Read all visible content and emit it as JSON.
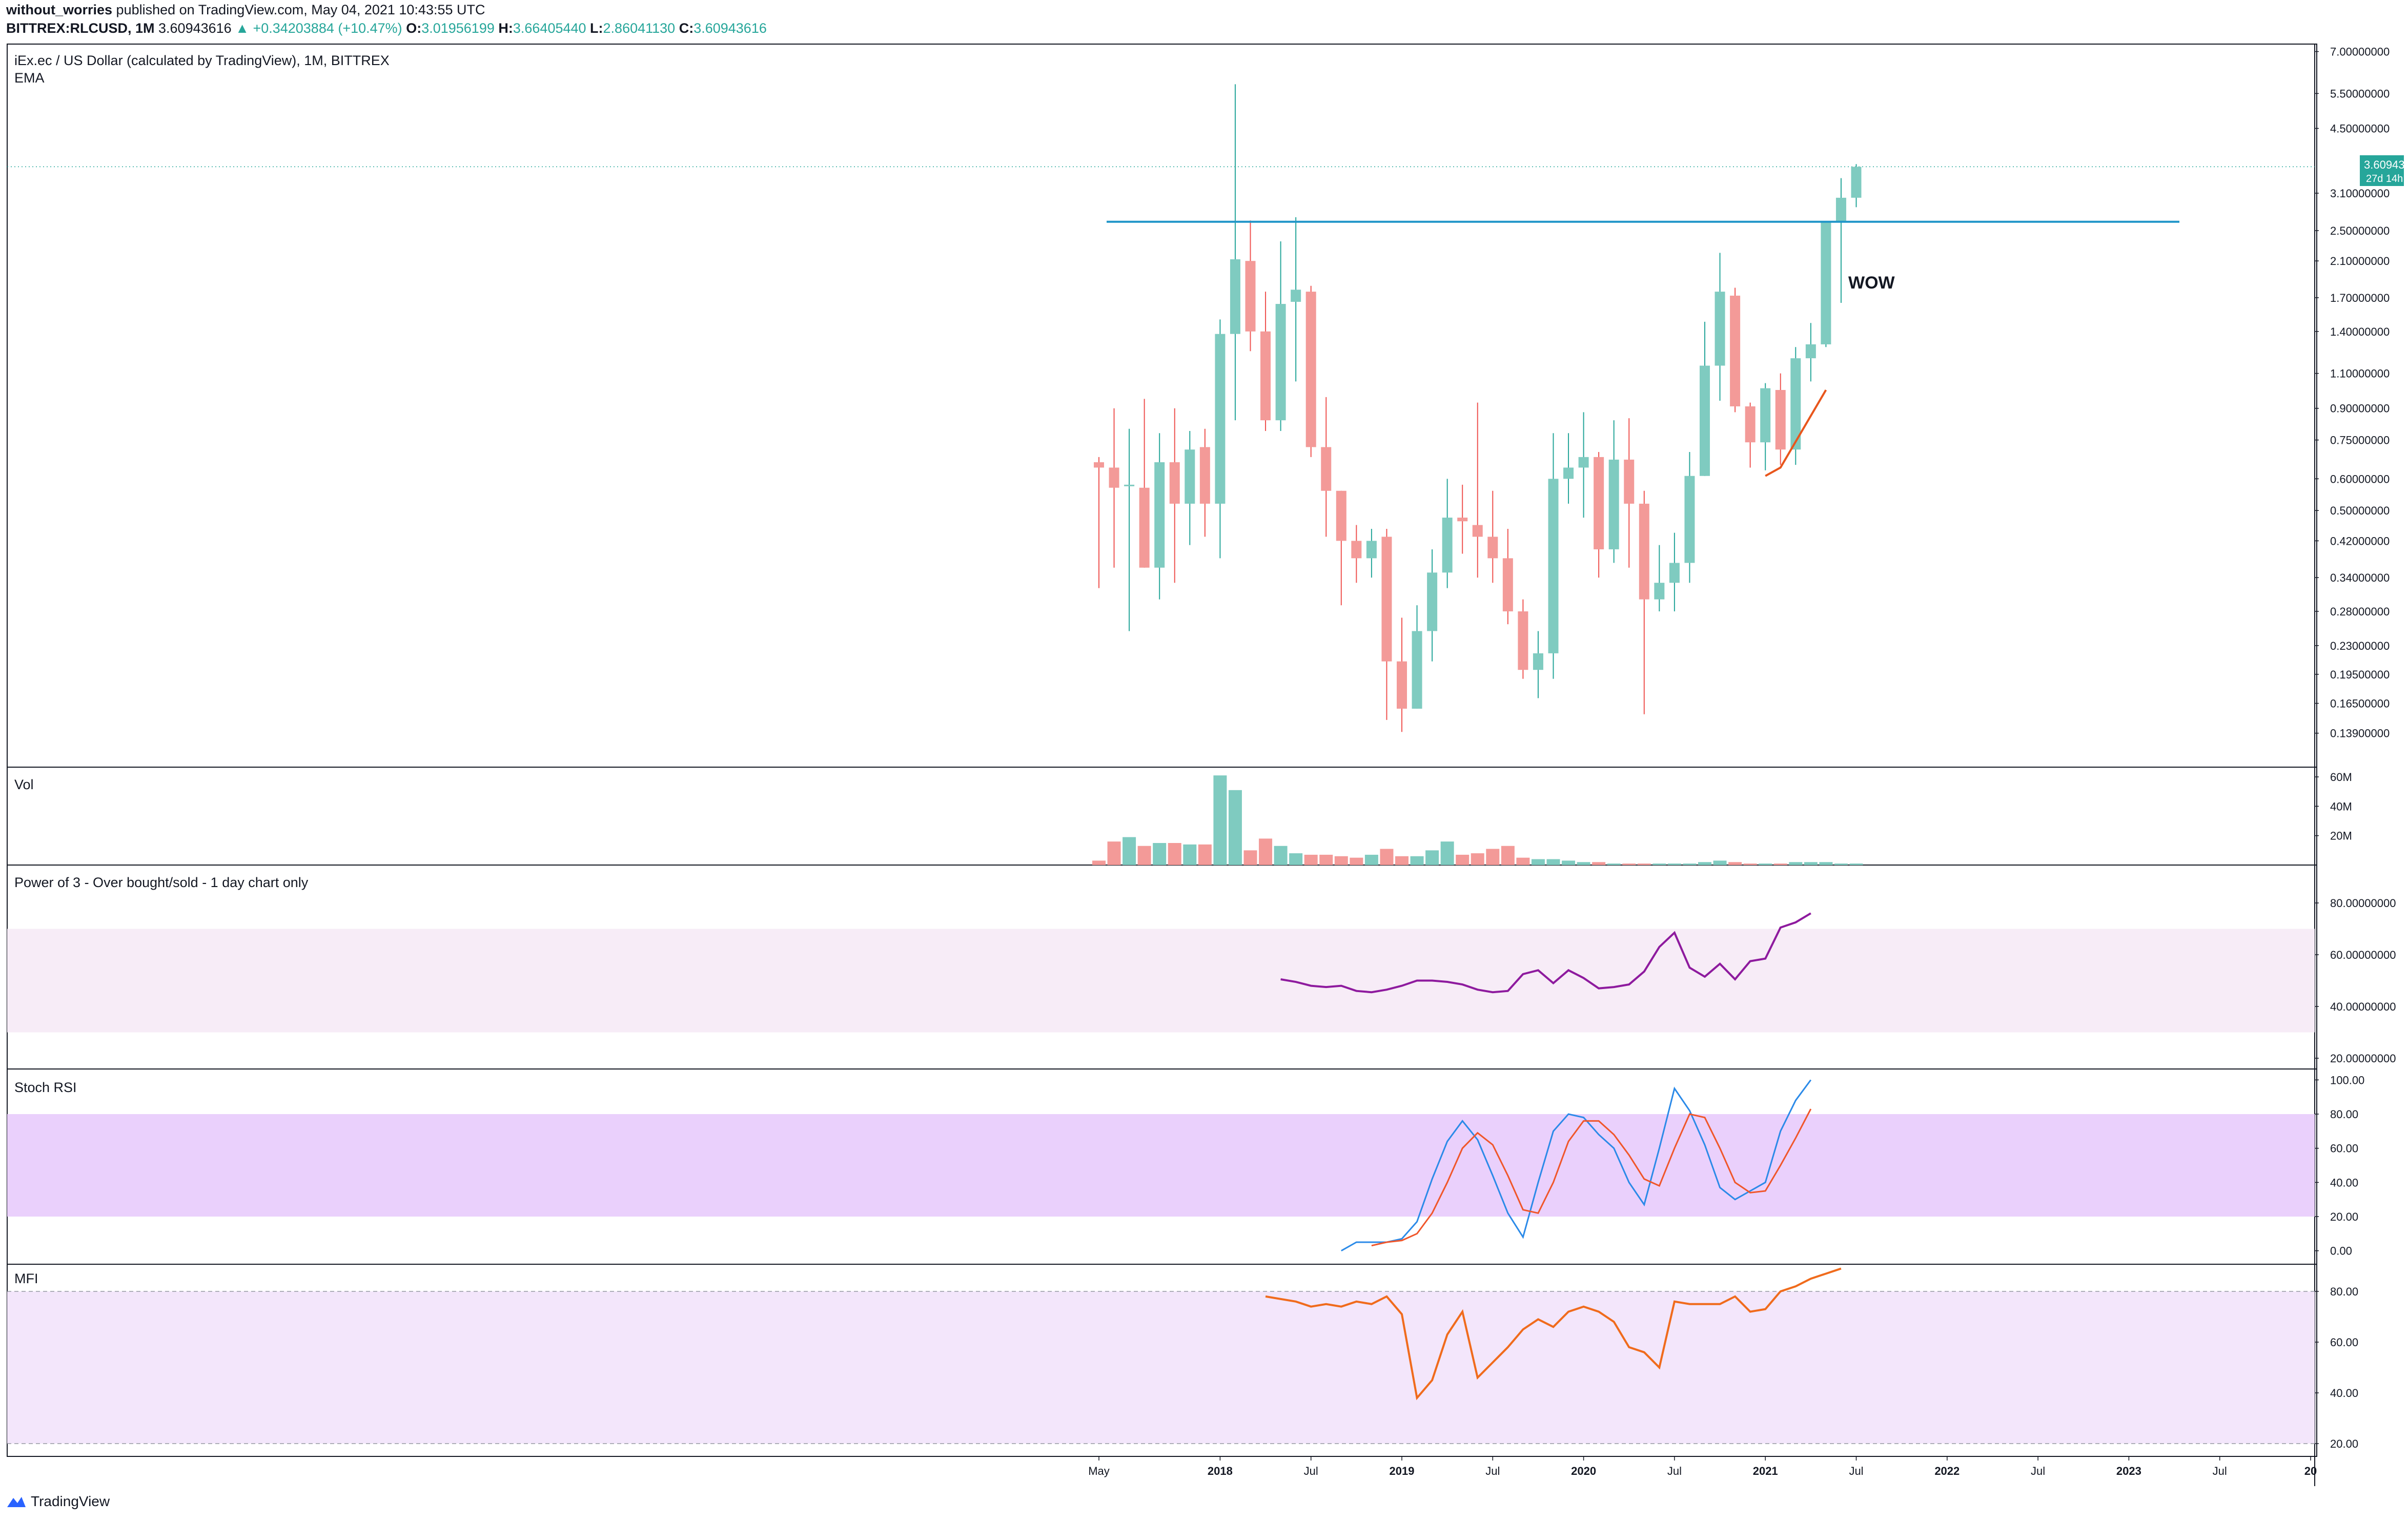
{
  "header": {
    "author": "without_worries",
    "published_text": "published on TradingView.com, May 04, 2021 10:43:55 UTC",
    "symbol": "BITTREX:RLCUSD, 1M",
    "last": "3.60943616",
    "change_arrow": "▲",
    "change": "+0.34203884 (+10.47%)",
    "o_label": "O:",
    "o_value": "3.01956199",
    "h_label": "H:",
    "h_value": "3.66405440",
    "l_label": "L:",
    "l_value": "2.86041130",
    "c_label": "C:",
    "c_value": "3.60943616"
  },
  "panes": {
    "main_title": "iEx.ec / US Dollar (calculated by TradingView), 1M, BITTREX",
    "main_subtitle": "EMA",
    "annotation": "WOW",
    "price_badge": "3.60943616",
    "price_badge_sub": "27d 14h",
    "vol_title": "Vol",
    "power_title": "Power of 3 - Over bought/sold - 1 day chart only",
    "stoch_title": "Stoch RSI",
    "mfi_title": "MFI"
  },
  "footer": {
    "brand": "TradingView"
  },
  "colors": {
    "up": "#7fcbc0",
    "down": "#f39a98",
    "up_wick": "#26a69a",
    "down_wick": "#ef5350",
    "hline": "#2196c9",
    "ema": "#e8561c",
    "power": "#8e1a9e",
    "power_band": "#f7ecf7",
    "stoch_k": "#2b8ae8",
    "stoch_d": "#f0562a",
    "stoch_band": "#ead0fc",
    "mfi": "#f06b1c",
    "mfi_band": "#f3e6fb",
    "grid": "#9598a1"
  },
  "axes": {
    "price_ticks": [
      "7.00000000",
      "5.50000000",
      "4.50000000",
      "3.10000000",
      "2.50000000",
      "2.10000000",
      "1.70000000",
      "1.40000000",
      "1.10000000",
      "0.90000000",
      "0.75000000",
      "0.60000000",
      "0.50000000",
      "0.42000000",
      "0.34000000",
      "0.28000000",
      "0.23000000",
      "0.19500000",
      "0.16500000",
      "0.13900000"
    ],
    "vol_ticks": [
      "60M",
      "40M",
      "20M"
    ],
    "power_ticks": [
      "80.00000000",
      "60.00000000",
      "40.00000000",
      "20.00000000"
    ],
    "stoch_ticks": [
      "100.00",
      "80.00",
      "60.00",
      "40.00",
      "20.00",
      "0.00"
    ],
    "mfi_ticks": [
      "80.00",
      "60.00",
      "40.00",
      "20.00"
    ],
    "time_labels": [
      {
        "label": "May",
        "bold": false
      },
      {
        "label": "2018",
        "bold": true
      },
      {
        "label": "Jul",
        "bold": false
      },
      {
        "label": "2019",
        "bold": true
      },
      {
        "label": "Jul",
        "bold": false
      },
      {
        "label": "2020",
        "bold": true
      },
      {
        "label": "Jul",
        "bold": false
      },
      {
        "label": "2021",
        "bold": true
      },
      {
        "label": "Jul",
        "bold": false
      },
      {
        "label": "2022",
        "bold": true
      },
      {
        "label": "Jul",
        "bold": false
      },
      {
        "label": "2023",
        "bold": true
      },
      {
        "label": "Jul",
        "bold": false
      },
      {
        "label": "20",
        "bold": true
      }
    ]
  },
  "chart_data": {
    "type": "candlestick",
    "timeframe": "1M",
    "scale": "log",
    "start_month": "2017-05",
    "candles": [
      {
        "o": 0.66,
        "h": 0.68,
        "l": 0.32,
        "c": 0.64
      },
      {
        "o": 0.64,
        "h": 0.9,
        "l": 0.36,
        "c": 0.57
      },
      {
        "o": 0.58,
        "h": 0.8,
        "l": 0.25,
        "c": 0.58
      },
      {
        "o": 0.57,
        "h": 0.95,
        "l": 0.36,
        "c": 0.36
      },
      {
        "o": 0.36,
        "h": 0.78,
        "l": 0.3,
        "c": 0.66
      },
      {
        "o": 0.66,
        "h": 0.9,
        "l": 0.33,
        "c": 0.52
      },
      {
        "o": 0.52,
        "h": 0.79,
        "l": 0.41,
        "c": 0.71
      },
      {
        "o": 0.72,
        "h": 0.8,
        "l": 0.43,
        "c": 0.52
      },
      {
        "o": 0.52,
        "h": 1.5,
        "l": 0.38,
        "c": 1.38
      },
      {
        "o": 1.38,
        "h": 5.8,
        "l": 0.84,
        "c": 2.12
      },
      {
        "o": 2.1,
        "h": 2.65,
        "l": 1.25,
        "c": 1.4
      },
      {
        "o": 1.4,
        "h": 1.76,
        "l": 0.79,
        "c": 0.84
      },
      {
        "o": 0.84,
        "h": 2.35,
        "l": 0.79,
        "c": 1.64
      },
      {
        "o": 1.66,
        "h": 2.7,
        "l": 1.05,
        "c": 1.78
      },
      {
        "o": 1.76,
        "h": 1.82,
        "l": 0.68,
        "c": 0.72
      },
      {
        "o": 0.72,
        "h": 0.96,
        "l": 0.43,
        "c": 0.56
      },
      {
        "o": 0.56,
        "h": 0.56,
        "l": 0.29,
        "c": 0.42
      },
      {
        "o": 0.42,
        "h": 0.46,
        "l": 0.33,
        "c": 0.38
      },
      {
        "o": 0.38,
        "h": 0.45,
        "l": 0.34,
        "c": 0.42
      },
      {
        "o": 0.43,
        "h": 0.45,
        "l": 0.15,
        "c": 0.21
      },
      {
        "o": 0.21,
        "h": 0.27,
        "l": 0.14,
        "c": 0.16
      },
      {
        "o": 0.16,
        "h": 0.29,
        "l": 0.16,
        "c": 0.25
      },
      {
        "o": 0.25,
        "h": 0.4,
        "l": 0.21,
        "c": 0.35
      },
      {
        "o": 0.35,
        "h": 0.6,
        "l": 0.32,
        "c": 0.48
      },
      {
        "o": 0.48,
        "h": 0.58,
        "l": 0.39,
        "c": 0.47
      },
      {
        "o": 0.46,
        "h": 0.93,
        "l": 0.34,
        "c": 0.43
      },
      {
        "o": 0.43,
        "h": 0.56,
        "l": 0.33,
        "c": 0.38
      },
      {
        "o": 0.38,
        "h": 0.45,
        "l": 0.26,
        "c": 0.28
      },
      {
        "o": 0.28,
        "h": 0.3,
        "l": 0.19,
        "c": 0.2
      },
      {
        "o": 0.2,
        "h": 0.25,
        "l": 0.17,
        "c": 0.22
      },
      {
        "o": 0.22,
        "h": 0.78,
        "l": 0.19,
        "c": 0.6
      },
      {
        "o": 0.6,
        "h": 0.78,
        "l": 0.52,
        "c": 0.64
      },
      {
        "o": 0.64,
        "h": 0.88,
        "l": 0.48,
        "c": 0.68
      },
      {
        "o": 0.68,
        "h": 0.7,
        "l": 0.34,
        "c": 0.4
      },
      {
        "o": 0.4,
        "h": 0.84,
        "l": 0.37,
        "c": 0.67
      },
      {
        "o": 0.67,
        "h": 0.85,
        "l": 0.36,
        "c": 0.52
      },
      {
        "o": 0.52,
        "h": 0.56,
        "l": 0.155,
        "c": 0.3
      },
      {
        "o": 0.3,
        "h": 0.41,
        "l": 0.28,
        "c": 0.33
      },
      {
        "o": 0.33,
        "h": 0.44,
        "l": 0.28,
        "c": 0.37
      },
      {
        "o": 0.37,
        "h": 0.7,
        "l": 0.33,
        "c": 0.61
      },
      {
        "o": 0.61,
        "h": 1.48,
        "l": 0.61,
        "c": 1.15
      },
      {
        "o": 1.15,
        "h": 2.2,
        "l": 0.94,
        "c": 1.76
      },
      {
        "o": 1.72,
        "h": 1.8,
        "l": 0.88,
        "c": 0.91
      },
      {
        "o": 0.91,
        "h": 0.93,
        "l": 0.64,
        "c": 0.74
      },
      {
        "o": 0.74,
        "h": 1.04,
        "l": 0.63,
        "c": 1.01
      },
      {
        "o": 1.0,
        "h": 1.1,
        "l": 0.65,
        "c": 0.71
      },
      {
        "o": 0.71,
        "h": 1.28,
        "l": 0.65,
        "c": 1.2
      },
      {
        "o": 1.2,
        "h": 1.47,
        "l": 1.05,
        "c": 1.3
      },
      {
        "o": 1.3,
        "h": 2.6,
        "l": 1.28,
        "c": 2.63
      },
      {
        "o": 2.63,
        "h": 3.38,
        "l": 1.65,
        "c": 3.02
      },
      {
        "o": 3.02,
        "h": 3.664,
        "l": 2.86,
        "c": 3.609
      }
    ],
    "resistance_line": 2.63,
    "ema": [
      {
        "i": 44,
        "v": 0.61
      },
      {
        "i": 45,
        "v": 0.64
      },
      {
        "i": 48,
        "v": 1.0
      }
    ],
    "volume_millions": [
      3,
      16,
      19,
      13,
      15,
      15,
      14,
      14,
      61,
      51,
      10,
      18,
      13,
      8,
      7,
      7,
      6,
      5,
      7,
      11,
      6,
      6,
      10,
      16,
      7,
      8,
      11,
      13,
      5,
      4,
      4,
      3,
      2,
      2,
      1,
      1,
      1,
      1,
      1,
      1,
      2,
      3,
      2,
      1,
      1,
      1,
      2,
      2,
      2,
      1,
      1
    ],
    "power_of_3": [
      {
        "i": 12,
        "v": 50.5
      },
      {
        "i": 13,
        "v": 49.5
      },
      {
        "i": 14,
        "v": 48
      },
      {
        "i": 15,
        "v": 47.5
      },
      {
        "i": 16,
        "v": 48
      },
      {
        "i": 17,
        "v": 46
      },
      {
        "i": 18,
        "v": 45.5
      },
      {
        "i": 19,
        "v": 46.5
      },
      {
        "i": 20,
        "v": 48
      },
      {
        "i": 21,
        "v": 50
      },
      {
        "i": 22,
        "v": 50
      },
      {
        "i": 23,
        "v": 49.5
      },
      {
        "i": 24,
        "v": 48.5
      },
      {
        "i": 25,
        "v": 46.5
      },
      {
        "i": 26,
        "v": 45.5
      },
      {
        "i": 27,
        "v": 46
      },
      {
        "i": 28,
        "v": 52.5
      },
      {
        "i": 29,
        "v": 54
      },
      {
        "i": 30,
        "v": 49
      },
      {
        "i": 31,
        "v": 54
      },
      {
        "i": 32,
        "v": 51
      },
      {
        "i": 33,
        "v": 47
      },
      {
        "i": 34,
        "v": 47.5
      },
      {
        "i": 35,
        "v": 48.5
      },
      {
        "i": 36,
        "v": 53.5
      },
      {
        "i": 37,
        "v": 63
      },
      {
        "i": 38,
        "v": 68.5
      },
      {
        "i": 39,
        "v": 55
      },
      {
        "i": 40,
        "v": 51.5
      },
      {
        "i": 41,
        "v": 56.5
      },
      {
        "i": 42,
        "v": 50.5
      },
      {
        "i": 43,
        "v": 57.5
      },
      {
        "i": 44,
        "v": 58.5
      },
      {
        "i": 45,
        "v": 70.5
      },
      {
        "i": 46,
        "v": 72.5
      },
      {
        "i": 47,
        "v": 76
      }
    ],
    "stoch_k": [
      {
        "i": 16,
        "v": 0
      },
      {
        "i": 17,
        "v": 5
      },
      {
        "i": 18,
        "v": 5
      },
      {
        "i": 19,
        "v": 5
      },
      {
        "i": 20,
        "v": 7
      },
      {
        "i": 21,
        "v": 17
      },
      {
        "i": 22,
        "v": 42
      },
      {
        "i": 23,
        "v": 64
      },
      {
        "i": 24,
        "v": 76
      },
      {
        "i": 25,
        "v": 65
      },
      {
        "i": 26,
        "v": 44
      },
      {
        "i": 27,
        "v": 22
      },
      {
        "i": 28,
        "v": 8
      },
      {
        "i": 29,
        "v": 40
      },
      {
        "i": 30,
        "v": 70
      },
      {
        "i": 31,
        "v": 80
      },
      {
        "i": 32,
        "v": 78
      },
      {
        "i": 33,
        "v": 68
      },
      {
        "i": 34,
        "v": 60
      },
      {
        "i": 35,
        "v": 40
      },
      {
        "i": 36,
        "v": 27
      },
      {
        "i": 37,
        "v": 60
      },
      {
        "i": 38,
        "v": 95
      },
      {
        "i": 39,
        "v": 82
      },
      {
        "i": 40,
        "v": 62
      },
      {
        "i": 41,
        "v": 37
      },
      {
        "i": 42,
        "v": 30
      },
      {
        "i": 43,
        "v": 35
      },
      {
        "i": 44,
        "v": 40
      },
      {
        "i": 45,
        "v": 70
      },
      {
        "i": 46,
        "v": 88
      },
      {
        "i": 47,
        "v": 100
      }
    ],
    "stoch_d": [
      {
        "i": 18,
        "v": 3
      },
      {
        "i": 19,
        "v": 5
      },
      {
        "i": 20,
        "v": 6
      },
      {
        "i": 21,
        "v": 10
      },
      {
        "i": 22,
        "v": 22
      },
      {
        "i": 23,
        "v": 40
      },
      {
        "i": 24,
        "v": 60
      },
      {
        "i": 25,
        "v": 69
      },
      {
        "i": 26,
        "v": 62
      },
      {
        "i": 27,
        "v": 44
      },
      {
        "i": 28,
        "v": 24
      },
      {
        "i": 29,
        "v": 22
      },
      {
        "i": 30,
        "v": 40
      },
      {
        "i": 31,
        "v": 64
      },
      {
        "i": 32,
        "v": 76
      },
      {
        "i": 33,
        "v": 76
      },
      {
        "i": 34,
        "v": 68
      },
      {
        "i": 35,
        "v": 56
      },
      {
        "i": 36,
        "v": 42
      },
      {
        "i": 37,
        "v": 38
      },
      {
        "i": 38,
        "v": 60
      },
      {
        "i": 39,
        "v": 80
      },
      {
        "i": 40,
        "v": 78
      },
      {
        "i": 41,
        "v": 60
      },
      {
        "i": 42,
        "v": 40
      },
      {
        "i": 43,
        "v": 34
      },
      {
        "i": 44,
        "v": 35
      },
      {
        "i": 45,
        "v": 50
      },
      {
        "i": 46,
        "v": 66
      },
      {
        "i": 47,
        "v": 83
      }
    ],
    "mfi": [
      {
        "i": 11,
        "v": 78
      },
      {
        "i": 12,
        "v": 77
      },
      {
        "i": 13,
        "v": 76
      },
      {
        "i": 14,
        "v": 74
      },
      {
        "i": 15,
        "v": 75
      },
      {
        "i": 16,
        "v": 74
      },
      {
        "i": 17,
        "v": 76
      },
      {
        "i": 18,
        "v": 75
      },
      {
        "i": 19,
        "v": 78
      },
      {
        "i": 20,
        "v": 71
      },
      {
        "i": 21,
        "v": 38
      },
      {
        "i": 22,
        "v": 45
      },
      {
        "i": 23,
        "v": 63
      },
      {
        "i": 24,
        "v": 72
      },
      {
        "i": 25,
        "v": 46
      },
      {
        "i": 26,
        "v": 52
      },
      {
        "i": 27,
        "v": 58
      },
      {
        "i": 28,
        "v": 65
      },
      {
        "i": 29,
        "v": 69
      },
      {
        "i": 30,
        "v": 66
      },
      {
        "i": 31,
        "v": 72
      },
      {
        "i": 32,
        "v": 74
      },
      {
        "i": 33,
        "v": 72
      },
      {
        "i": 34,
        "v": 68
      },
      {
        "i": 35,
        "v": 58
      },
      {
        "i": 36,
        "v": 56
      },
      {
        "i": 37,
        "v": 50
      },
      {
        "i": 38,
        "v": 76
      },
      {
        "i": 39,
        "v": 75
      },
      {
        "i": 40,
        "v": 75
      },
      {
        "i": 41,
        "v": 75
      },
      {
        "i": 42,
        "v": 78
      },
      {
        "i": 43,
        "v": 72
      },
      {
        "i": 44,
        "v": 73
      },
      {
        "i": 45,
        "v": 80
      },
      {
        "i": 46,
        "v": 82
      },
      {
        "i": 47,
        "v": 85
      },
      {
        "i": 48,
        "v": 87
      },
      {
        "i": 49,
        "v": 89
      }
    ]
  }
}
